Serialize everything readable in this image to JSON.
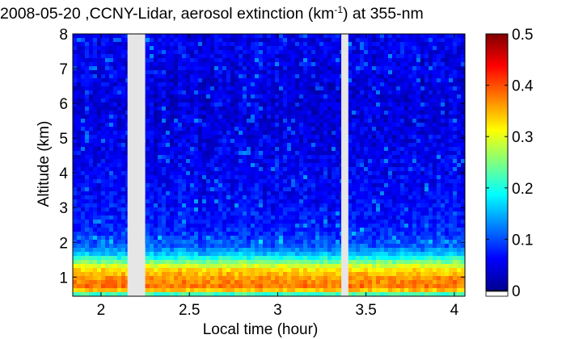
{
  "title": {
    "prefix": "2008-05-20 ,CCNY-Lidar, aerosol extinction (km",
    "sup": "-1",
    "suffix": ") at 355-nm"
  },
  "chart_data": {
    "type": "heatmap",
    "xlabel": "Local time (hour)",
    "ylabel": "Altitude (km)",
    "xlim": [
      1.84,
      4.06
    ],
    "ylim": [
      0.45,
      8.0
    ],
    "xticks": [
      {
        "value": 2,
        "label": "2"
      },
      {
        "value": 2.5,
        "label": "2.5"
      },
      {
        "value": 3,
        "label": "3"
      },
      {
        "value": 3.5,
        "label": "3.5"
      },
      {
        "value": 4,
        "label": "4"
      }
    ],
    "yticks": [
      {
        "value": 1,
        "label": "1"
      },
      {
        "value": 2,
        "label": "2"
      },
      {
        "value": 3,
        "label": "3"
      },
      {
        "value": 4,
        "label": "4"
      },
      {
        "value": 5,
        "label": "5"
      },
      {
        "value": 6,
        "label": "6"
      },
      {
        "value": 7,
        "label": "7"
      },
      {
        "value": 8,
        "label": "8"
      }
    ],
    "data_gaps_hours": [
      [
        2.15,
        2.25
      ],
      [
        3.36,
        3.4
      ]
    ],
    "colorbar": {
      "colormap": "jet",
      "range": [
        0,
        0.5
      ],
      "ticks": [
        {
          "value": 0,
          "label": "0"
        },
        {
          "value": 0.1,
          "label": "0.1"
        },
        {
          "value": 0.2,
          "label": "0.2"
        },
        {
          "value": 0.3,
          "label": "0.3"
        },
        {
          "value": 0.4,
          "label": "0.4"
        },
        {
          "value": 0.5,
          "label": "0.5"
        }
      ]
    },
    "profile": {
      "altitude_km": [
        0.45,
        0.55,
        0.75,
        1.0,
        1.25,
        1.45,
        1.65,
        1.9,
        2.2,
        2.7,
        3.3,
        4.0,
        5.0,
        6.0,
        7.0,
        8.0
      ],
      "extinction_km-1": [
        0.08,
        0.32,
        0.38,
        0.36,
        0.32,
        0.24,
        0.16,
        0.11,
        0.085,
        0.07,
        0.062,
        0.058,
        0.05,
        0.045,
        0.05,
        0.055
      ]
    }
  }
}
